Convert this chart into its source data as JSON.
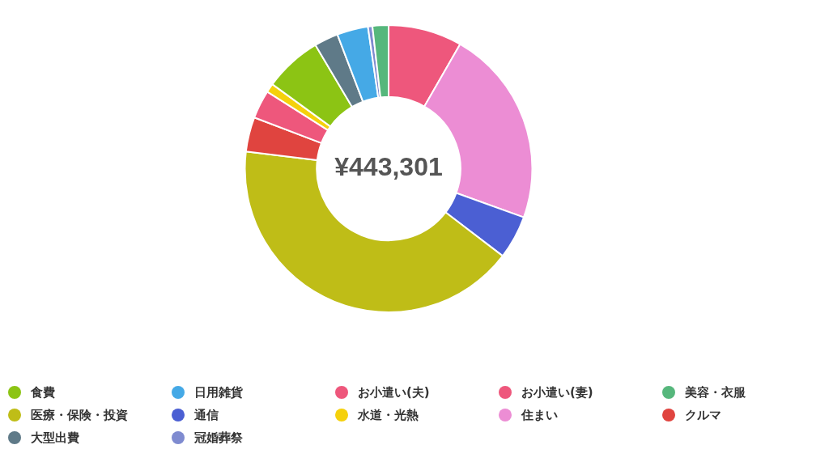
{
  "chart_data": {
    "type": "donut",
    "categories": [
      "お小遣い(夫)",
      "住まい",
      "通信",
      "医療・保険・投資",
      "クルマ",
      "お小遣い(妻)",
      "水道・光熱",
      "食費",
      "大型出費",
      "日用雑貨",
      "冠婚葬祭",
      "美容・衣服"
    ],
    "values": [
      8.3,
      22.2,
      4.9,
      41.5,
      3.9,
      3.2,
      1.0,
      6.5,
      2.7,
      3.5,
      0.5,
      1.8
    ],
    "colors": [
      "#ee577c",
      "#ec8dd4",
      "#4b5fd3",
      "#bfbd17",
      "#e0443f",
      "#ee577c",
      "#f5d10c",
      "#8cc414",
      "#5f7a88",
      "#45a9e6",
      "#7f8bd0",
      "#56b77c"
    ],
    "annotations": [
      "¥443,301"
    ],
    "legend": "bottom"
  }
}
